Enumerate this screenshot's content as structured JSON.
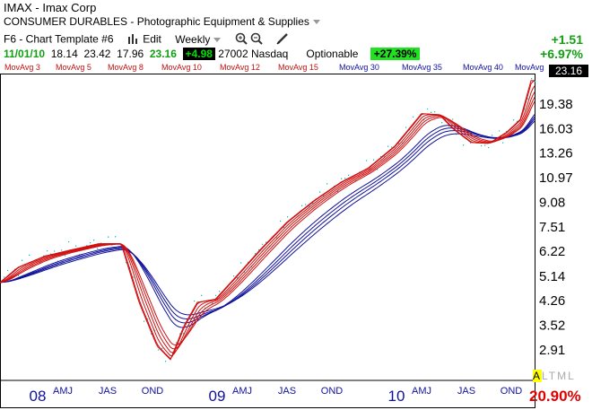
{
  "header": {
    "symbol_line": "IMAX - Imax Corp",
    "sector_group": "CONSUMER DURABLES",
    "sector_sep": "-",
    "industry": "Photographic Equipment & Supplies",
    "template": "F6 - Chart Template #6",
    "edit_label": "Edit",
    "period": "Weekly",
    "quote": {
      "date": "11/01/10",
      "open": "18.14",
      "high": "23.42",
      "low": "17.96",
      "close": "23.16",
      "change": "+4.98",
      "volume": "27002",
      "exchange": "Nasdaq",
      "optionable": "Optionable",
      "pct_badge": "+27.39%"
    },
    "change_abs": "+1.51",
    "change_pct": "+6.97%"
  },
  "ma_labels": [
    "MovAvg 3",
    "MovAvg 5",
    "MovAvg 8",
    "MovAvg 10",
    "MovAvg 12",
    "MovAvg 15",
    "MovAvg 30",
    "MovAvg 35",
    "MovAvg 40",
    "MovAvg"
  ],
  "last_price_box": "23.16",
  "rs_percent": "20.90%",
  "altml": {
    "a": "A",
    "rest": "LTML"
  },
  "colors": {
    "short_ma": "#d01010",
    "long_ma": "#10109a",
    "price_dots": "#00c8c8",
    "up": "#12a012",
    "down": "#e00000"
  },
  "chart_data": {
    "type": "line",
    "scale": "log",
    "y_ticks": [
      "19.38",
      "16.03",
      "13.26",
      "10.97",
      "9.08",
      "7.51",
      "6.22",
      "5.14",
      "4.26",
      "3.52",
      "2.91"
    ],
    "y_tick_values": [
      19.38,
      16.03,
      13.26,
      10.97,
      9.08,
      7.51,
      6.22,
      5.14,
      4.26,
      3.52,
      2.91
    ],
    "ylim": [
      2.5,
      23.5
    ],
    "x_labels": [
      {
        "label": "08",
        "t": 0.0,
        "style": "year"
      },
      {
        "label": "AMJ",
        "t": 0.5,
        "style": "q"
      },
      {
        "label": "JAS",
        "t": 1.0,
        "style": "q"
      },
      {
        "label": "OND",
        "t": 1.5,
        "style": "q"
      },
      {
        "label": "09",
        "t": 2.0,
        "style": "year"
      },
      {
        "label": "AMJ",
        "t": 2.5,
        "style": "q"
      },
      {
        "label": "JAS",
        "t": 3.0,
        "style": "q"
      },
      {
        "label": "OND",
        "t": 3.5,
        "style": "q"
      },
      {
        "label": "10",
        "t": 4.0,
        "style": "year"
      },
      {
        "label": "AMJ",
        "t": 4.5,
        "style": "q"
      },
      {
        "label": "JAS",
        "t": 5.0,
        "style": "q"
      },
      {
        "label": "OND",
        "t": 5.5,
        "style": "q"
      }
    ],
    "xlim": [
      -0.2,
      5.76
    ],
    "base_points": [
      [
        -0.2,
        4.9
      ],
      [
        0.0,
        5.5
      ],
      [
        0.3,
        6.0
      ],
      [
        0.6,
        6.3
      ],
      [
        0.9,
        6.6
      ],
      [
        1.15,
        6.6
      ],
      [
        1.35,
        4.2
      ],
      [
        1.55,
        3.0
      ],
      [
        1.7,
        2.7
      ],
      [
        1.85,
        3.5
      ],
      [
        2.0,
        4.2
      ],
      [
        2.2,
        4.3
      ],
      [
        2.4,
        5.0
      ],
      [
        2.7,
        6.3
      ],
      [
        3.0,
        7.8
      ],
      [
        3.3,
        9.2
      ],
      [
        3.6,
        10.6
      ],
      [
        3.9,
        11.8
      ],
      [
        4.2,
        14.0
      ],
      [
        4.5,
        18.0
      ],
      [
        4.7,
        17.8
      ],
      [
        4.85,
        16.0
      ],
      [
        5.05,
        14.4
      ],
      [
        5.25,
        14.3
      ],
      [
        5.45,
        15.6
      ],
      [
        5.6,
        17.2
      ],
      [
        5.72,
        23.2
      ]
    ],
    "series": [
      {
        "name": "MovAvg 3",
        "group": "short",
        "lag": 0.0
      },
      {
        "name": "MovAvg 5",
        "group": "short",
        "lag": 0.03
      },
      {
        "name": "MovAvg 8",
        "group": "short",
        "lag": 0.06
      },
      {
        "name": "MovAvg 10",
        "group": "short",
        "lag": 0.09
      },
      {
        "name": "MovAvg 12",
        "group": "short",
        "lag": 0.12
      },
      {
        "name": "MovAvg 15",
        "group": "short",
        "lag": 0.15
      },
      {
        "name": "MovAvg 30",
        "group": "long",
        "lag": 0.3
      },
      {
        "name": "MovAvg 35",
        "group": "long",
        "lag": 0.35
      },
      {
        "name": "MovAvg 40",
        "group": "long",
        "lag": 0.4
      },
      {
        "name": "MovAvg",
        "group": "long",
        "lag": 0.46
      }
    ]
  }
}
